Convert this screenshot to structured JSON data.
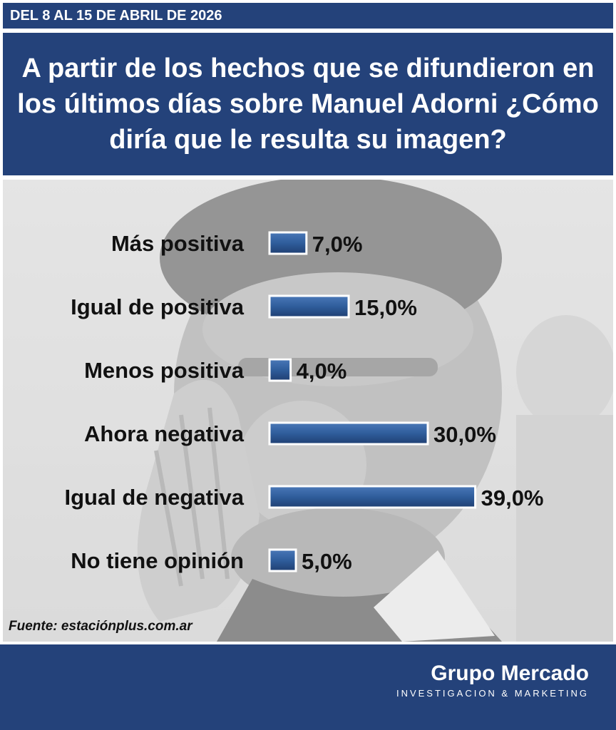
{
  "header": {
    "date_range": "DEL 8 AL 15 DE ABRIL DE 2026",
    "question": "A partir de los hechos que se difundieron en los últimos días sobre Manuel Adorni ¿Cómo diría que le resulta su imagen?"
  },
  "source": "Fuente: estaciónplus.com.ar",
  "footer": {
    "brand": "Grupo Mercado",
    "tagline": "INVESTIGACION & MARKETING"
  },
  "colors": {
    "header_bg": "#24427a",
    "bar_fill": "#2f5d9b",
    "bar_border": "#ffffff"
  },
  "chart_data": {
    "type": "bar",
    "orientation": "horizontal",
    "categories": [
      "Más positiva",
      "Igual de positiva",
      "Menos positiva",
      "Ahora negativa",
      "Igual de negativa",
      "No tiene opinión"
    ],
    "values": [
      7.0,
      15.0,
      4.0,
      30.0,
      39.0,
      5.0
    ],
    "value_labels": [
      "7,0%",
      "15,0%",
      "4,0%",
      "30,0%",
      "39,0%",
      "5,0%"
    ],
    "unit": "%",
    "grid": false
  }
}
